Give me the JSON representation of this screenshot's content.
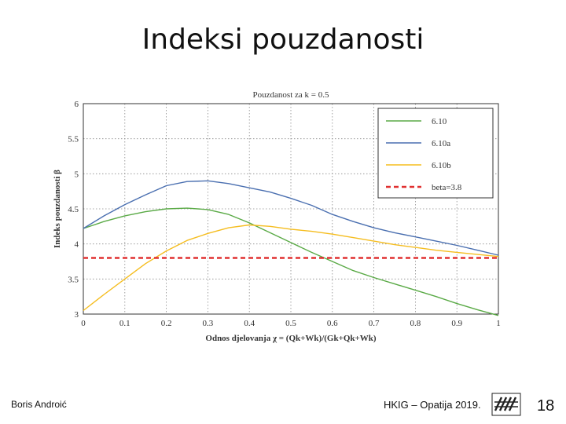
{
  "slide": {
    "title": "Indeksi pouzdanosti",
    "author": "Boris Androić",
    "event": "HKIG – Opatija 2019.",
    "page_number": "18"
  },
  "chart_data": {
    "type": "line",
    "title": "Pouzdanost za k = 0.5",
    "xlabel": "Odnos djelovanja χ = (Qk+Wk)/(Gk+Qk+Wk)",
    "ylabel": "Indeks pouzdanosti β",
    "xlim": [
      0,
      1
    ],
    "ylim": [
      3,
      6
    ],
    "xticks": [
      0,
      0.1,
      0.2,
      0.3,
      0.4,
      0.5,
      0.6,
      0.7,
      0.8,
      0.9,
      1
    ],
    "xtick_labels": [
      "0",
      "0.1",
      "0.2",
      "0.3",
      "0.4",
      "0.5",
      "0.6",
      "0.7",
      "0.8",
      "0.9",
      "1"
    ],
    "yticks": [
      3,
      3.5,
      4,
      4.5,
      5,
      5.5,
      6
    ],
    "ytick_labels": [
      "3",
      "3.5",
      "4",
      "4.5",
      "5",
      "5.5",
      "6"
    ],
    "grid": true,
    "legend_position": "top-right",
    "x": [
      0,
      0.05,
      0.1,
      0.15,
      0.2,
      0.25,
      0.3,
      0.35,
      0.4,
      0.45,
      0.5,
      0.55,
      0.6,
      0.65,
      0.7,
      0.75,
      0.8,
      0.85,
      0.9,
      0.95,
      1
    ],
    "series": [
      {
        "name": "6.10",
        "color": "#5aaa46",
        "dash": false,
        "values": [
          4.22,
          4.32,
          4.4,
          4.46,
          4.5,
          4.51,
          4.49,
          4.42,
          4.3,
          4.16,
          4.02,
          3.88,
          3.75,
          3.62,
          3.52,
          3.43,
          3.34,
          3.25,
          3.15,
          3.06,
          2.98
        ]
      },
      {
        "name": "6.10a",
        "color": "#4a6fb0",
        "dash": false,
        "values": [
          4.22,
          4.4,
          4.56,
          4.7,
          4.83,
          4.89,
          4.9,
          4.86,
          4.8,
          4.74,
          4.65,
          4.55,
          4.42,
          4.32,
          4.23,
          4.16,
          4.1,
          4.04,
          3.98,
          3.91,
          3.84
        ]
      },
      {
        "name": "6.10b",
        "color": "#f5bd1f",
        "dash": false,
        "values": [
          3.05,
          3.28,
          3.5,
          3.72,
          3.9,
          4.05,
          4.15,
          4.23,
          4.27,
          4.25,
          4.21,
          4.18,
          4.14,
          4.09,
          4.04,
          3.99,
          3.95,
          3.91,
          3.88,
          3.85,
          3.82
        ]
      },
      {
        "name": "beta=3.8",
        "color": "#e03030",
        "dash": true,
        "values": [
          3.8,
          3.8,
          3.8,
          3.8,
          3.8,
          3.8,
          3.8,
          3.8,
          3.8,
          3.8,
          3.8,
          3.8,
          3.8,
          3.8,
          3.8,
          3.8,
          3.8,
          3.8,
          3.8,
          3.8,
          3.8
        ]
      }
    ]
  }
}
